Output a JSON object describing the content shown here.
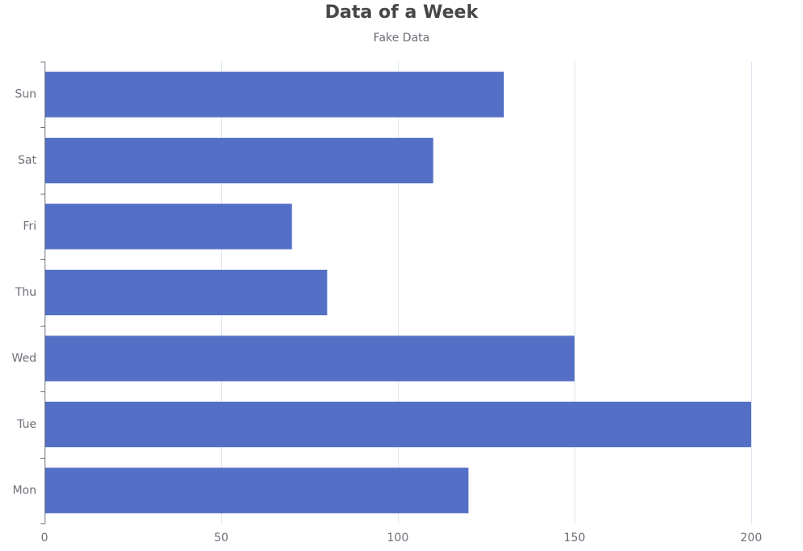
{
  "colors": {
    "bar": "#5470c6",
    "axis": "#6e7079",
    "grid": "#e0e6f1",
    "title": "#464646",
    "subtitle": "#6e7079"
  },
  "chart_data": {
    "type": "bar",
    "orientation": "horizontal",
    "title": "Data of a Week",
    "subtitle": "Fake Data",
    "categories": [
      "Mon",
      "Tue",
      "Wed",
      "Thu",
      "Fri",
      "Sat",
      "Sun"
    ],
    "values": [
      120,
      200,
      150,
      80,
      70,
      110,
      130
    ],
    "xlim": [
      0,
      200
    ],
    "x_ticks": [
      0,
      50,
      100,
      150,
      200
    ],
    "grid": true,
    "legend": "none"
  }
}
